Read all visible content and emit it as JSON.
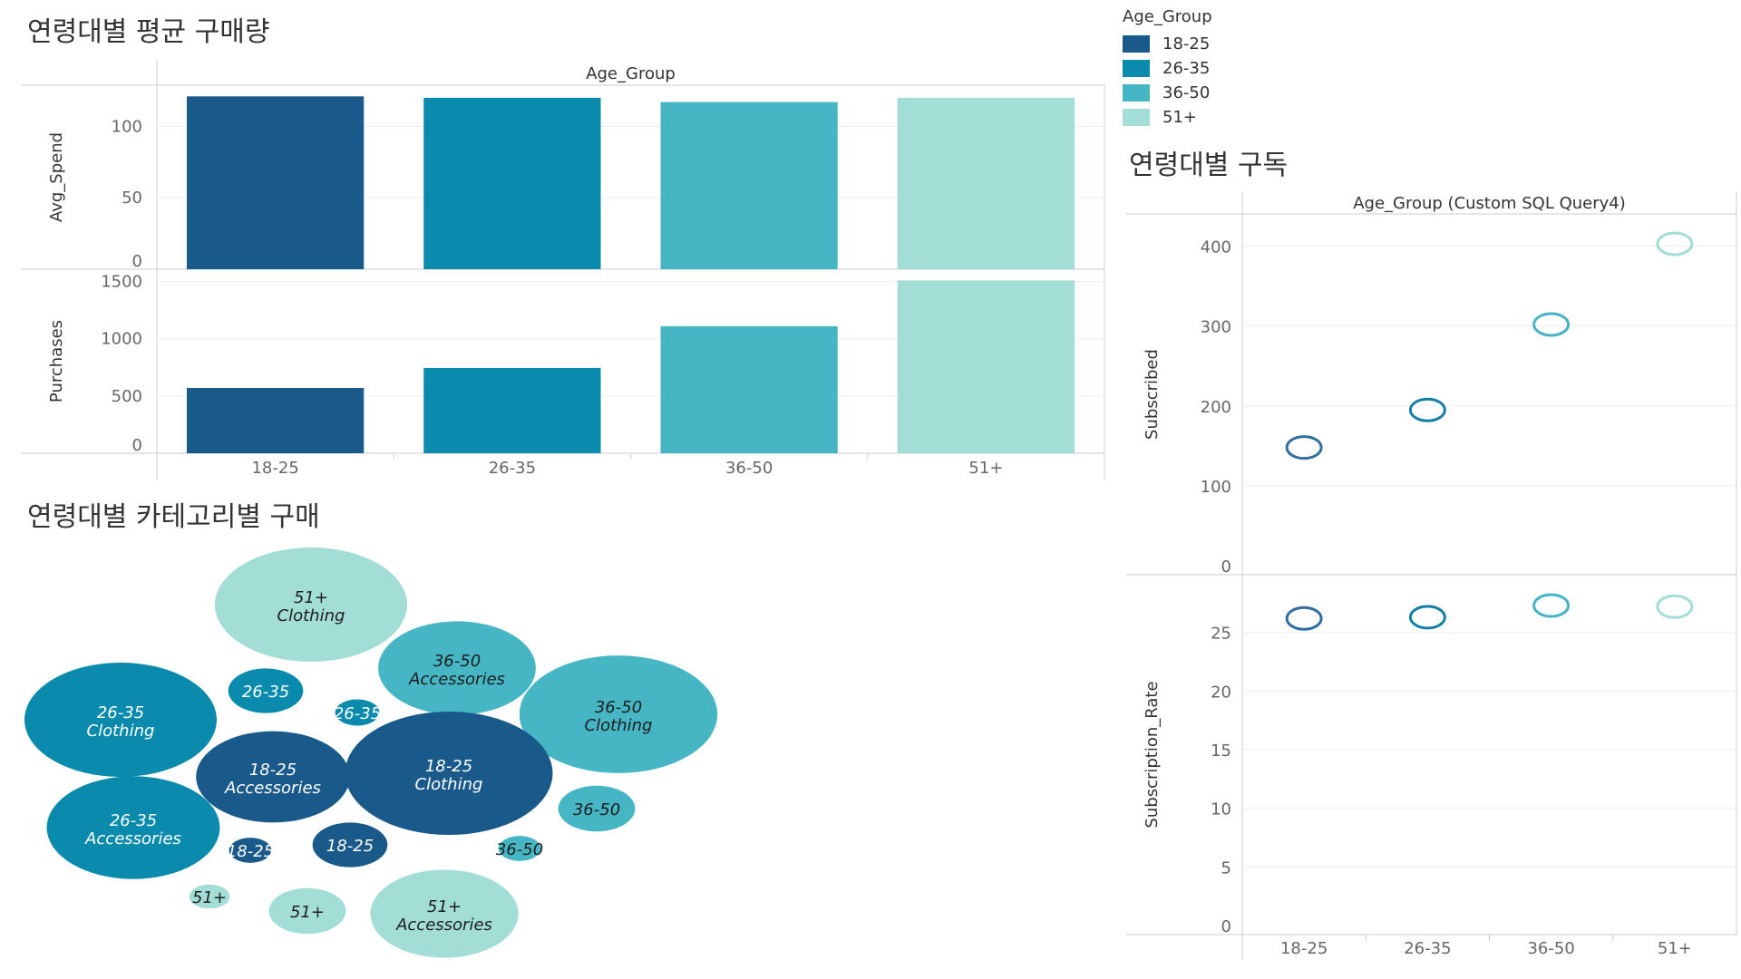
{
  "titles": {
    "avg_purchase": "연령대별 평균 구매량",
    "category_purchase": "연령대별 카테고리별 구매",
    "subscription": "연령대별 구독"
  },
  "legend": {
    "title": "Age_Group",
    "items": [
      {
        "label": "18-25",
        "color": "#1a5a8a"
      },
      {
        "label": "26-35",
        "color": "#0a8aad"
      },
      {
        "label": "36-50",
        "color": "#47b6c4"
      },
      {
        "label": "51+",
        "color": "#a2ded6"
      }
    ]
  },
  "chart_data": [
    {
      "type": "bar",
      "title": "연령대별 평균 구매량",
      "header": "Age_Group",
      "categories": [
        "18-25",
        "26-35",
        "36-50",
        "51+"
      ],
      "colors": [
        "#1a5a8a",
        "#0a8aad",
        "#47b6c4",
        "#a2ded6"
      ],
      "panels": [
        {
          "ylabel": "Avg_Spend",
          "ylim": [
            0,
            125
          ],
          "ticks": [
            0,
            50,
            100
          ],
          "values": [
            121,
            120,
            117,
            120
          ]
        },
        {
          "ylabel": "Purchases",
          "ylim": [
            0,
            1560
          ],
          "ticks": [
            0,
            500,
            1000,
            1500
          ],
          "values": [
            570,
            745,
            1110,
            1510
          ]
        }
      ]
    },
    {
      "type": "scatter",
      "title": "연령대별 구독",
      "header": "Age_Group (Custom SQL Query4)",
      "categories": [
        "18-25",
        "26-35",
        "36-50",
        "51+"
      ],
      "colors": [
        "#2f6fa0",
        "#137fa6",
        "#45b3c3",
        "#a2ded6"
      ],
      "panels": [
        {
          "ylabel": "Subscribed",
          "ylim": [
            0,
            420
          ],
          "ticks": [
            0,
            100,
            200,
            300,
            400
          ],
          "values": [
            148,
            195,
            302,
            403
          ]
        },
        {
          "ylabel": "Subscription_Rate",
          "ylim": [
            0,
            29
          ],
          "ticks": [
            0,
            5,
            10,
            15,
            20,
            25
          ],
          "values": [
            26.2,
            26.3,
            27.3,
            27.2
          ]
        }
      ]
    },
    {
      "type": "bubble",
      "title": "연령대별 카테고리별 구매",
      "bubbles": [
        {
          "age": "51+",
          "category": "Clothing",
          "value": 100
        },
        {
          "age": "36-50",
          "category": "Accessories",
          "value": 82
        },
        {
          "age": "26-35",
          "category": "",
          "value": 39
        },
        {
          "age": "26-35",
          "category": "Clothing",
          "value": 100
        },
        {
          "age": "26-35",
          "category": "",
          "value": 23
        },
        {
          "age": "36-50",
          "category": "Clothing",
          "value": 103
        },
        {
          "age": "18-25",
          "category": "Accessories",
          "value": 80
        },
        {
          "age": "18-25",
          "category": "Clothing",
          "value": 108
        },
        {
          "age": "36-50",
          "category": "",
          "value": 40
        },
        {
          "age": "26-35",
          "category": "Accessories",
          "value": 90
        },
        {
          "age": "18-25",
          "category": "",
          "value": 22
        },
        {
          "age": "18-25",
          "category": "",
          "value": 39
        },
        {
          "age": "36-50",
          "category": "",
          "value": 22
        },
        {
          "age": "51+",
          "category": "",
          "value": 21
        },
        {
          "age": "51+",
          "category": "",
          "value": 40
        },
        {
          "age": "51+",
          "category": "Accessories",
          "value": 77
        }
      ]
    }
  ]
}
